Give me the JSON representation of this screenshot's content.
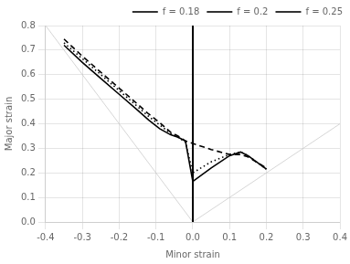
{
  "chart_data": {
    "type": "line",
    "xlabel": "Minor strain",
    "ylabel": "Major strain",
    "xlim": [
      -0.4,
      0.4
    ],
    "ylim": [
      0.0,
      0.8
    ],
    "xticks": [
      -0.4,
      -0.3,
      -0.2,
      -0.1,
      {
        "value": 0,
        "label": "0.0"
      },
      0.1,
      0.2,
      0.3,
      0.4
    ],
    "yticks": [
      {
        "value": 0,
        "label": "0.0"
      },
      0.1,
      0.2,
      0.3,
      0.4,
      0.5,
      0.6,
      0.7,
      0.8
    ],
    "grid": true,
    "legend": "upper right",
    "series": [
      {
        "name": "f = 0.18",
        "color": "#000000",
        "line_style": "solid",
        "x": [
          -0.35,
          -0.3,
          -0.25,
          -0.2,
          -0.15,
          -0.12,
          -0.09,
          -0.06,
          -0.04,
          -0.02,
          0.0,
          0.05,
          0.1,
          0.13,
          0.15,
          0.2
        ],
        "values": [
          0.72,
          0.65,
          0.585,
          0.52,
          0.455,
          0.415,
          0.38,
          0.355,
          0.345,
          0.33,
          0.165,
          0.22,
          0.27,
          0.285,
          0.27,
          0.215
        ]
      },
      {
        "name": "f = 0.2",
        "color": "#000000",
        "line_style": "dotted",
        "x": [
          -0.35,
          -0.3,
          -0.25,
          -0.2,
          -0.15,
          -0.12,
          -0.09,
          -0.06,
          -0.04,
          -0.02,
          0.0,
          0.05,
          0.1,
          0.13,
          0.15,
          0.2
        ],
        "values": [
          0.73,
          0.665,
          0.6,
          0.535,
          0.47,
          0.43,
          0.395,
          0.36,
          0.345,
          0.325,
          0.2,
          0.245,
          0.275,
          0.285,
          0.27,
          0.215
        ]
      },
      {
        "name": "f = 0.25",
        "color": "#000000",
        "line_style": "dashed",
        "x": [
          -0.35,
          -0.3,
          -0.25,
          -0.2,
          -0.15,
          -0.12,
          -0.09,
          -0.06,
          -0.04,
          -0.02,
          0.0,
          0.05,
          0.1,
          0.13,
          0.15,
          0.2
        ],
        "values": [
          0.745,
          0.675,
          0.61,
          0.545,
          0.48,
          0.44,
          0.405,
          0.365,
          0.35,
          0.33,
          0.32,
          0.295,
          0.275,
          0.275,
          0.265,
          0.22
        ]
      }
    ],
    "reference_lines": [
      {
        "x": [
          -0.4,
          0.0
        ],
        "y": [
          0.8,
          0.0
        ],
        "color": "#cccccc"
      },
      {
        "x": [
          0.0,
          0.4
        ],
        "y": [
          0.0,
          0.4
        ],
        "color": "#cccccc"
      }
    ],
    "vlines": [
      0
    ]
  }
}
